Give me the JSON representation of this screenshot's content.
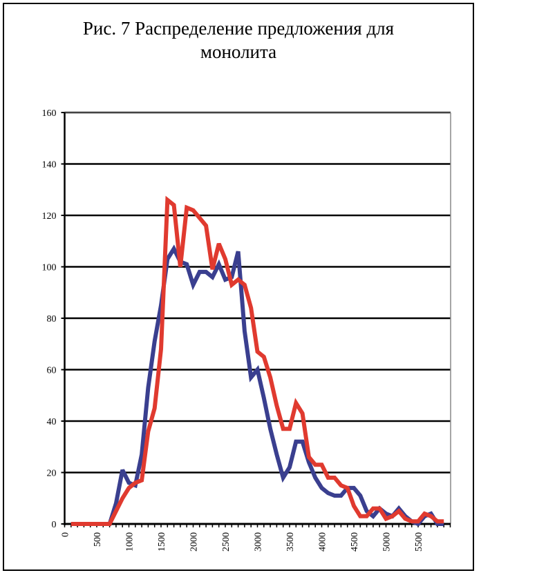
{
  "chart_data": {
    "type": "line",
    "title": "Рис. 7 Распределение предложения для монолита",
    "title_lines": [
      "Рис. 7 Распределение предложения для",
      "монолита"
    ],
    "xlabel": "",
    "ylabel": "",
    "xlim": [
      0,
      6000
    ],
    "ylim": [
      0,
      160
    ],
    "y_ticks": [
      0,
      20,
      40,
      60,
      80,
      100,
      120,
      140,
      160
    ],
    "x_ticks": [
      0,
      500,
      1000,
      1500,
      2000,
      2500,
      3000,
      3500,
      4000,
      4500,
      5000,
      5500
    ],
    "x_tick_labels": [
      "0",
      "500",
      "1000",
      "1500",
      "2000",
      "2500",
      "3000",
      "3500",
      "4000",
      "4500",
      "5000",
      "5500"
    ],
    "grid": true,
    "legend": "none",
    "x": [
      100,
      200,
      300,
      400,
      500,
      600,
      700,
      800,
      900,
      1000,
      1100,
      1200,
      1300,
      1400,
      1500,
      1600,
      1700,
      1800,
      1900,
      2000,
      2100,
      2200,
      2300,
      2400,
      2500,
      2600,
      2700,
      2800,
      2900,
      3000,
      3100,
      3200,
      3300,
      3400,
      3500,
      3600,
      3700,
      3800,
      3900,
      4000,
      4100,
      4200,
      4300,
      4400,
      4500,
      4600,
      4700,
      4800,
      4900,
      5000,
      5100,
      5200,
      5300,
      5400,
      5500,
      5600,
      5700,
      5800,
      5900
    ],
    "series": [
      {
        "name": "blue",
        "color": "#3a3f8f",
        "values": [
          0,
          0,
          0,
          0,
          0,
          0,
          0,
          8,
          21,
          16,
          15,
          27,
          53,
          71,
          85,
          103,
          107,
          102,
          101,
          93,
          98,
          98,
          96,
          101,
          95,
          96,
          106,
          75,
          57,
          60,
          49,
          37,
          27,
          18,
          22,
          32,
          32,
          24,
          18,
          14,
          12,
          11,
          11,
          14,
          14,
          11,
          5,
          3,
          6,
          4,
          3,
          6,
          3,
          1,
          0,
          3,
          4,
          0,
          0
        ]
      },
      {
        "name": "red",
        "color": "#e03a2f",
        "values": [
          0,
          0,
          0,
          0,
          0,
          0,
          0,
          5,
          10,
          14,
          16,
          17,
          36,
          45,
          68,
          126,
          124,
          100,
          123,
          122,
          119,
          116,
          99,
          109,
          103,
          93,
          95,
          93,
          84,
          67,
          65,
          57,
          46,
          37,
          37,
          47,
          43,
          26,
          23,
          23,
          18,
          18,
          15,
          14,
          7,
          3,
          3,
          6,
          6,
          2,
          3,
          5,
          2,
          1,
          1,
          4,
          3,
          1,
          1
        ]
      }
    ]
  }
}
